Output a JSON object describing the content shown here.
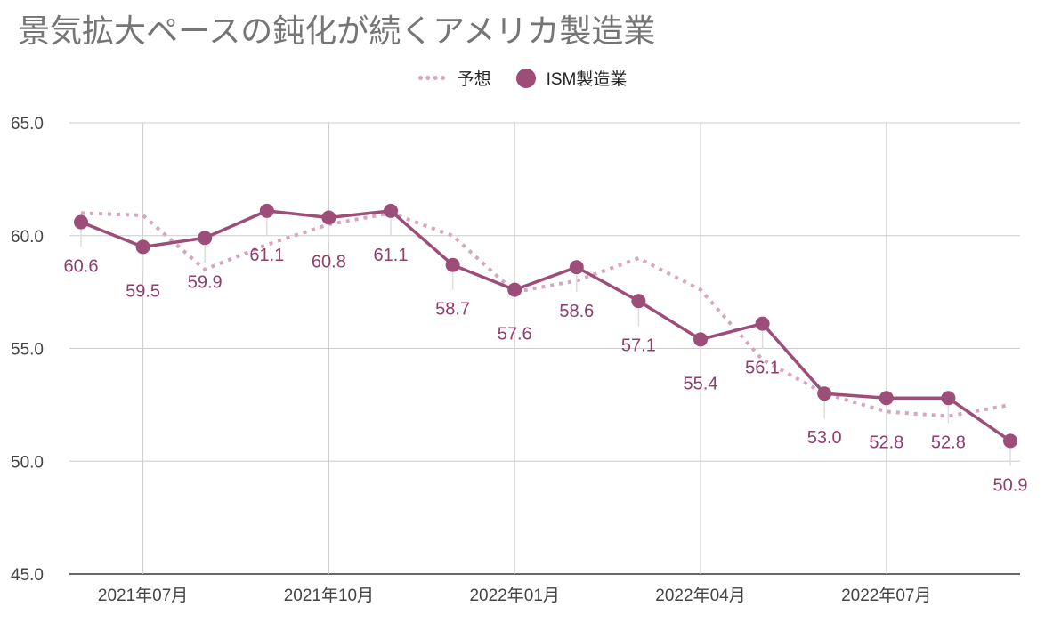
{
  "chart_data": {
    "type": "line",
    "title": "景気拡大ペースの鈍化が続くアメリカ製造業",
    "xlabel": "",
    "ylabel": "",
    "ylim": [
      45,
      65
    ],
    "y_ticks": [
      "45.0",
      "50.0",
      "55.0",
      "60.0",
      "65.0"
    ],
    "x_tick_labels": [
      "2021年07月",
      "2021年10月",
      "2022年01月",
      "2022年04月",
      "2022年07月"
    ],
    "x": [
      "2021-06",
      "2021-07",
      "2021-08",
      "2021-09",
      "2021-10",
      "2021-11",
      "2021-12",
      "2022-01",
      "2022-02",
      "2022-03",
      "2022-04",
      "2022-05",
      "2022-06",
      "2022-07",
      "2022-08",
      "2022-09"
    ],
    "grid": true,
    "legend_position": "top-center",
    "series": [
      {
        "name": "予想",
        "style": "dotted",
        "color": "#d4a6bf",
        "values": [
          61.0,
          60.9,
          58.5,
          59.6,
          60.5,
          61.0,
          60.0,
          57.5,
          58.0,
          59.0,
          57.6,
          54.5,
          53.0,
          52.2,
          52.0,
          52.5
        ]
      },
      {
        "name": "ISM製造業",
        "style": "solid-markers",
        "color": "#9c4d78",
        "values": [
          60.6,
          59.5,
          59.9,
          61.1,
          60.8,
          61.1,
          58.7,
          57.6,
          58.6,
          57.1,
          55.4,
          56.1,
          53.0,
          52.8,
          52.8,
          50.9
        ],
        "labels": [
          "60.6",
          "59.5",
          "59.9",
          "61.1",
          "60.8",
          "61.1",
          "58.7",
          "57.6",
          "58.6",
          "57.1",
          "55.4",
          "56.1",
          "53.0",
          "52.8",
          "52.8",
          "50.9"
        ]
      }
    ]
  }
}
